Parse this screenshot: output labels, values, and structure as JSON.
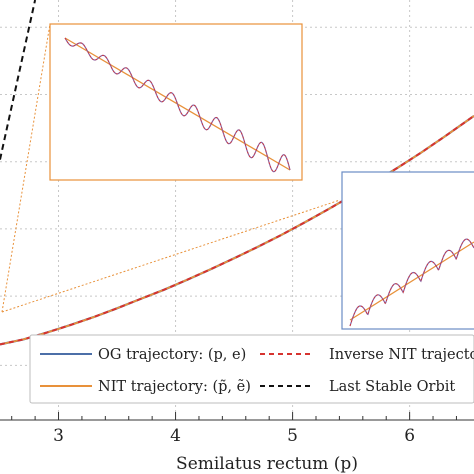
{
  "chart_data": {
    "type": "line",
    "title": "",
    "xlabel": "Semilatus rectum (p)",
    "ylabel": "",
    "xlim": [
      2.5,
      6.55
    ],
    "ylim": [
      0,
      1
    ],
    "grid": true,
    "x_ticks": [
      "3",
      "4",
      "5",
      "6"
    ],
    "x_tick_values": [
      3,
      4,
      5,
      6
    ],
    "y_grid_values": [
      0.13,
      0.295,
      0.455,
      0.615,
      0.775,
      0.935
    ],
    "series": [
      {
        "name": "OG trajectory: (p, e)",
        "color": "#4c6fa8",
        "style": "solid",
        "x": [
          2.5,
          2.7,
          2.9,
          3.1,
          3.3,
          3.5,
          3.7,
          3.9,
          4.1,
          4.3,
          4.5,
          4.7,
          4.9,
          5.1,
          5.3,
          5.5,
          5.7,
          5.9,
          6.1,
          6.3,
          6.55
        ],
        "y": [
          0.18,
          0.192,
          0.208,
          0.226,
          0.245,
          0.266,
          0.288,
          0.31,
          0.334,
          0.359,
          0.385,
          0.412,
          0.44,
          0.47,
          0.501,
          0.533,
          0.567,
          0.601,
          0.637,
          0.675,
          0.724
        ]
      },
      {
        "name": "NIT trajectory: (p̃, ẽ)",
        "color": "#e8913a",
        "style": "solid",
        "x": [
          2.5,
          2.7,
          2.9,
          3.1,
          3.3,
          3.5,
          3.7,
          3.9,
          4.1,
          4.3,
          4.5,
          4.7,
          4.9,
          5.1,
          5.3,
          5.5,
          5.7,
          5.9,
          6.1,
          6.3,
          6.55
        ],
        "y": [
          0.18,
          0.192,
          0.208,
          0.226,
          0.245,
          0.266,
          0.288,
          0.31,
          0.334,
          0.359,
          0.385,
          0.412,
          0.44,
          0.47,
          0.501,
          0.533,
          0.567,
          0.601,
          0.637,
          0.675,
          0.724
        ]
      },
      {
        "name": "Inverse NIT trajectory",
        "color": "#d6332f",
        "style": "dashed",
        "x": [
          2.5,
          2.7,
          2.9,
          3.1,
          3.3,
          3.5,
          3.7,
          3.9,
          4.1,
          4.3,
          4.5,
          4.7,
          4.9,
          5.1,
          5.3,
          5.5,
          5.7,
          5.9,
          6.1,
          6.3,
          6.55
        ],
        "y": [
          0.18,
          0.192,
          0.208,
          0.226,
          0.245,
          0.266,
          0.288,
          0.31,
          0.334,
          0.359,
          0.385,
          0.412,
          0.44,
          0.47,
          0.501,
          0.533,
          0.567,
          0.601,
          0.637,
          0.675,
          0.724
        ]
      },
      {
        "name": "Last Stable Orbit",
        "color": "#111111",
        "style": "dashed",
        "x": [
          2.5,
          2.8
        ],
        "y": [
          0.62,
          1.0
        ]
      }
    ],
    "legend": {
      "placement": "bottom",
      "entries": [
        {
          "label": "OG trajectory: (p, e)",
          "color": "#4c6fa8",
          "style": "solid"
        },
        {
          "label": "Inverse NIT trajecto",
          "color": "#d6332f",
          "style": "dashed"
        },
        {
          "label": "NIT trajectory: (p̃, ẽ)",
          "color": "#e8913a",
          "style": "solid"
        },
        {
          "label": "Last Stable Orbit",
          "color": "#111111",
          "style": "dashed"
        }
      ]
    },
    "insets": [
      {
        "name": "zoom-inset-orange",
        "border_color": "#e8913a"
      },
      {
        "name": "zoom-inset-blue",
        "border_color": "#6a8cc4"
      }
    ]
  }
}
